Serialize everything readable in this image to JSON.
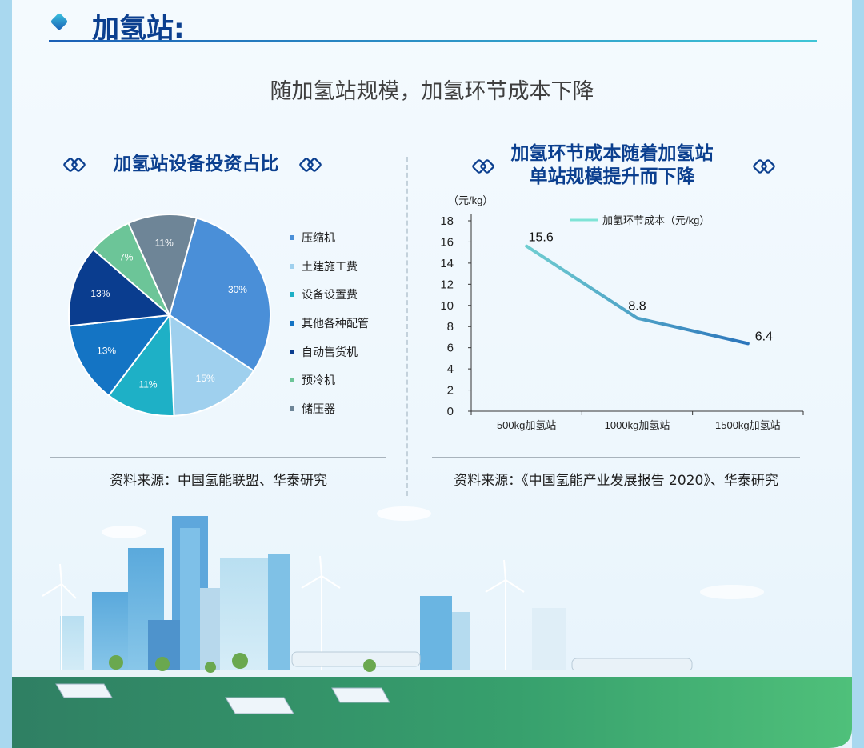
{
  "header": {
    "title": "加氢站:"
  },
  "headline": "随加氢站规模，加氢环节成本下降",
  "pie": {
    "title": "加氢站设备投资占比",
    "source": "资料来源：中国氢能联盟、华泰研究"
  },
  "line": {
    "title_line1": "加氢环节成本随着加氢站",
    "title_line2": "单站规模提升而下降",
    "source": "资料来源：《中国氢能产业发展报告 2020》、华泰研究"
  },
  "chart_data": [
    {
      "type": "pie",
      "title": "加氢站设备投资占比",
      "labels": [
        "压缩机",
        "土建施工费",
        "设备设置费",
        "其他各种配管",
        "自动售货机",
        "预冷机",
        "储压器"
      ],
      "values": [
        30,
        15,
        11,
        13,
        13,
        7,
        11
      ],
      "value_labels": [
        "30%",
        "15%",
        "11%",
        "13%",
        "13%",
        "7%",
        "11%"
      ],
      "colors": [
        "#4a8fd8",
        "#9fd0ee",
        "#1eb0c6",
        "#1474c4",
        "#0a3d8f",
        "#6cc598",
        "#6e8597"
      ],
      "legend": "right"
    },
    {
      "type": "line",
      "title": "加氢环节成本随着加氢站单站规模提升而下降",
      "categories": [
        "500kg加氢站",
        "1000kg加氢站",
        "1500kg加氢站"
      ],
      "series": [
        {
          "name": "加氢环节成本（元/kg）",
          "values": [
            15.6,
            8.8,
            6.4
          ]
        }
      ],
      "ylabel": "（元/kg）",
      "ylim": [
        0,
        18
      ],
      "yticks": [
        "0",
        "2",
        "4",
        "6",
        "8",
        "10",
        "12",
        "14",
        "16",
        "18"
      ],
      "data_labels": [
        "15.6",
        "8.8",
        "6.4"
      ],
      "legend": "top-right",
      "grid": false
    }
  ],
  "colors": {
    "title": "#0b3f8f",
    "line_start": "#7fe3d6",
    "line_end": "#1b5fb6"
  }
}
